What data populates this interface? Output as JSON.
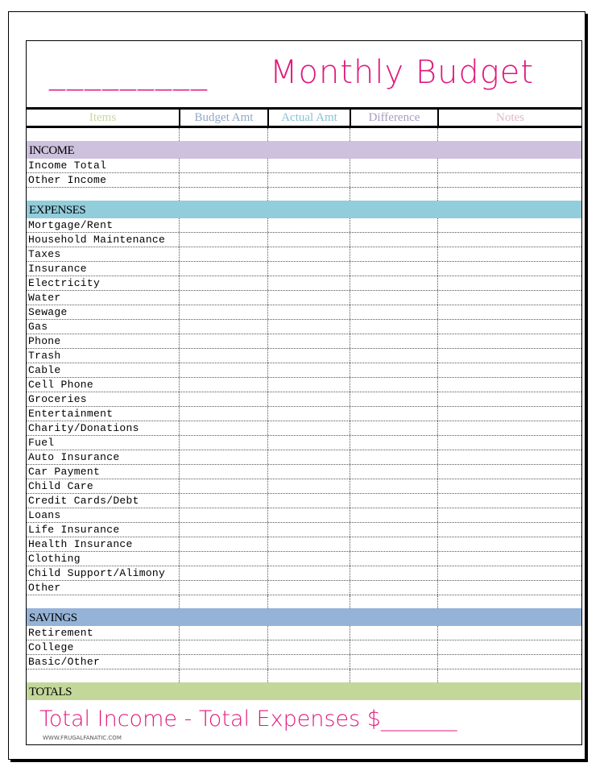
{
  "title": {
    "blank": "_________",
    "text": "Monthly Budget"
  },
  "columns": [
    {
      "label": "Items",
      "color": "#c9d8a0"
    },
    {
      "label": "Budget Amt",
      "color": "#90a8c8"
    },
    {
      "label": "Actual Amt",
      "color": "#88c4d4"
    },
    {
      "label": "Difference",
      "color": "#a89cc0"
    },
    {
      "label": "Notes",
      "color": "#e0b8c4"
    }
  ],
  "sections": [
    {
      "label": "INCOME",
      "color": "#cdc1dd",
      "items": [
        "Income Total",
        "Other Income"
      ]
    },
    {
      "label": "EXPENSES",
      "color": "#92cddb",
      "items": [
        "Mortgage/Rent",
        "Household Maintenance",
        "Taxes",
        "Insurance",
        "Electricity",
        "Water",
        "Sewage",
        "Gas",
        "Phone",
        "Trash",
        "Cable",
        "Cell Phone",
        "Groceries",
        "Entertainment",
        "Charity/Donations",
        "Fuel",
        "Auto Insurance",
        "Car Payment",
        "Child Care",
        "Credit Cards/Debt",
        "Loans",
        "Life Insurance",
        "Health Insurance",
        "Clothing",
        "Child Support/Alimony",
        "Other"
      ]
    },
    {
      "label": "SAVINGS",
      "color": "#95b3d7",
      "items": [
        "Retirement",
        "College",
        "Basic/Other"
      ]
    }
  ],
  "totals": {
    "label": "TOTALS",
    "color": "#c4d79b"
  },
  "footer": {
    "equation": "Total Income - Total Expenses $_______",
    "site": "WWW.FRUGALFANATIC.COM"
  },
  "accent": "#e0197d"
}
